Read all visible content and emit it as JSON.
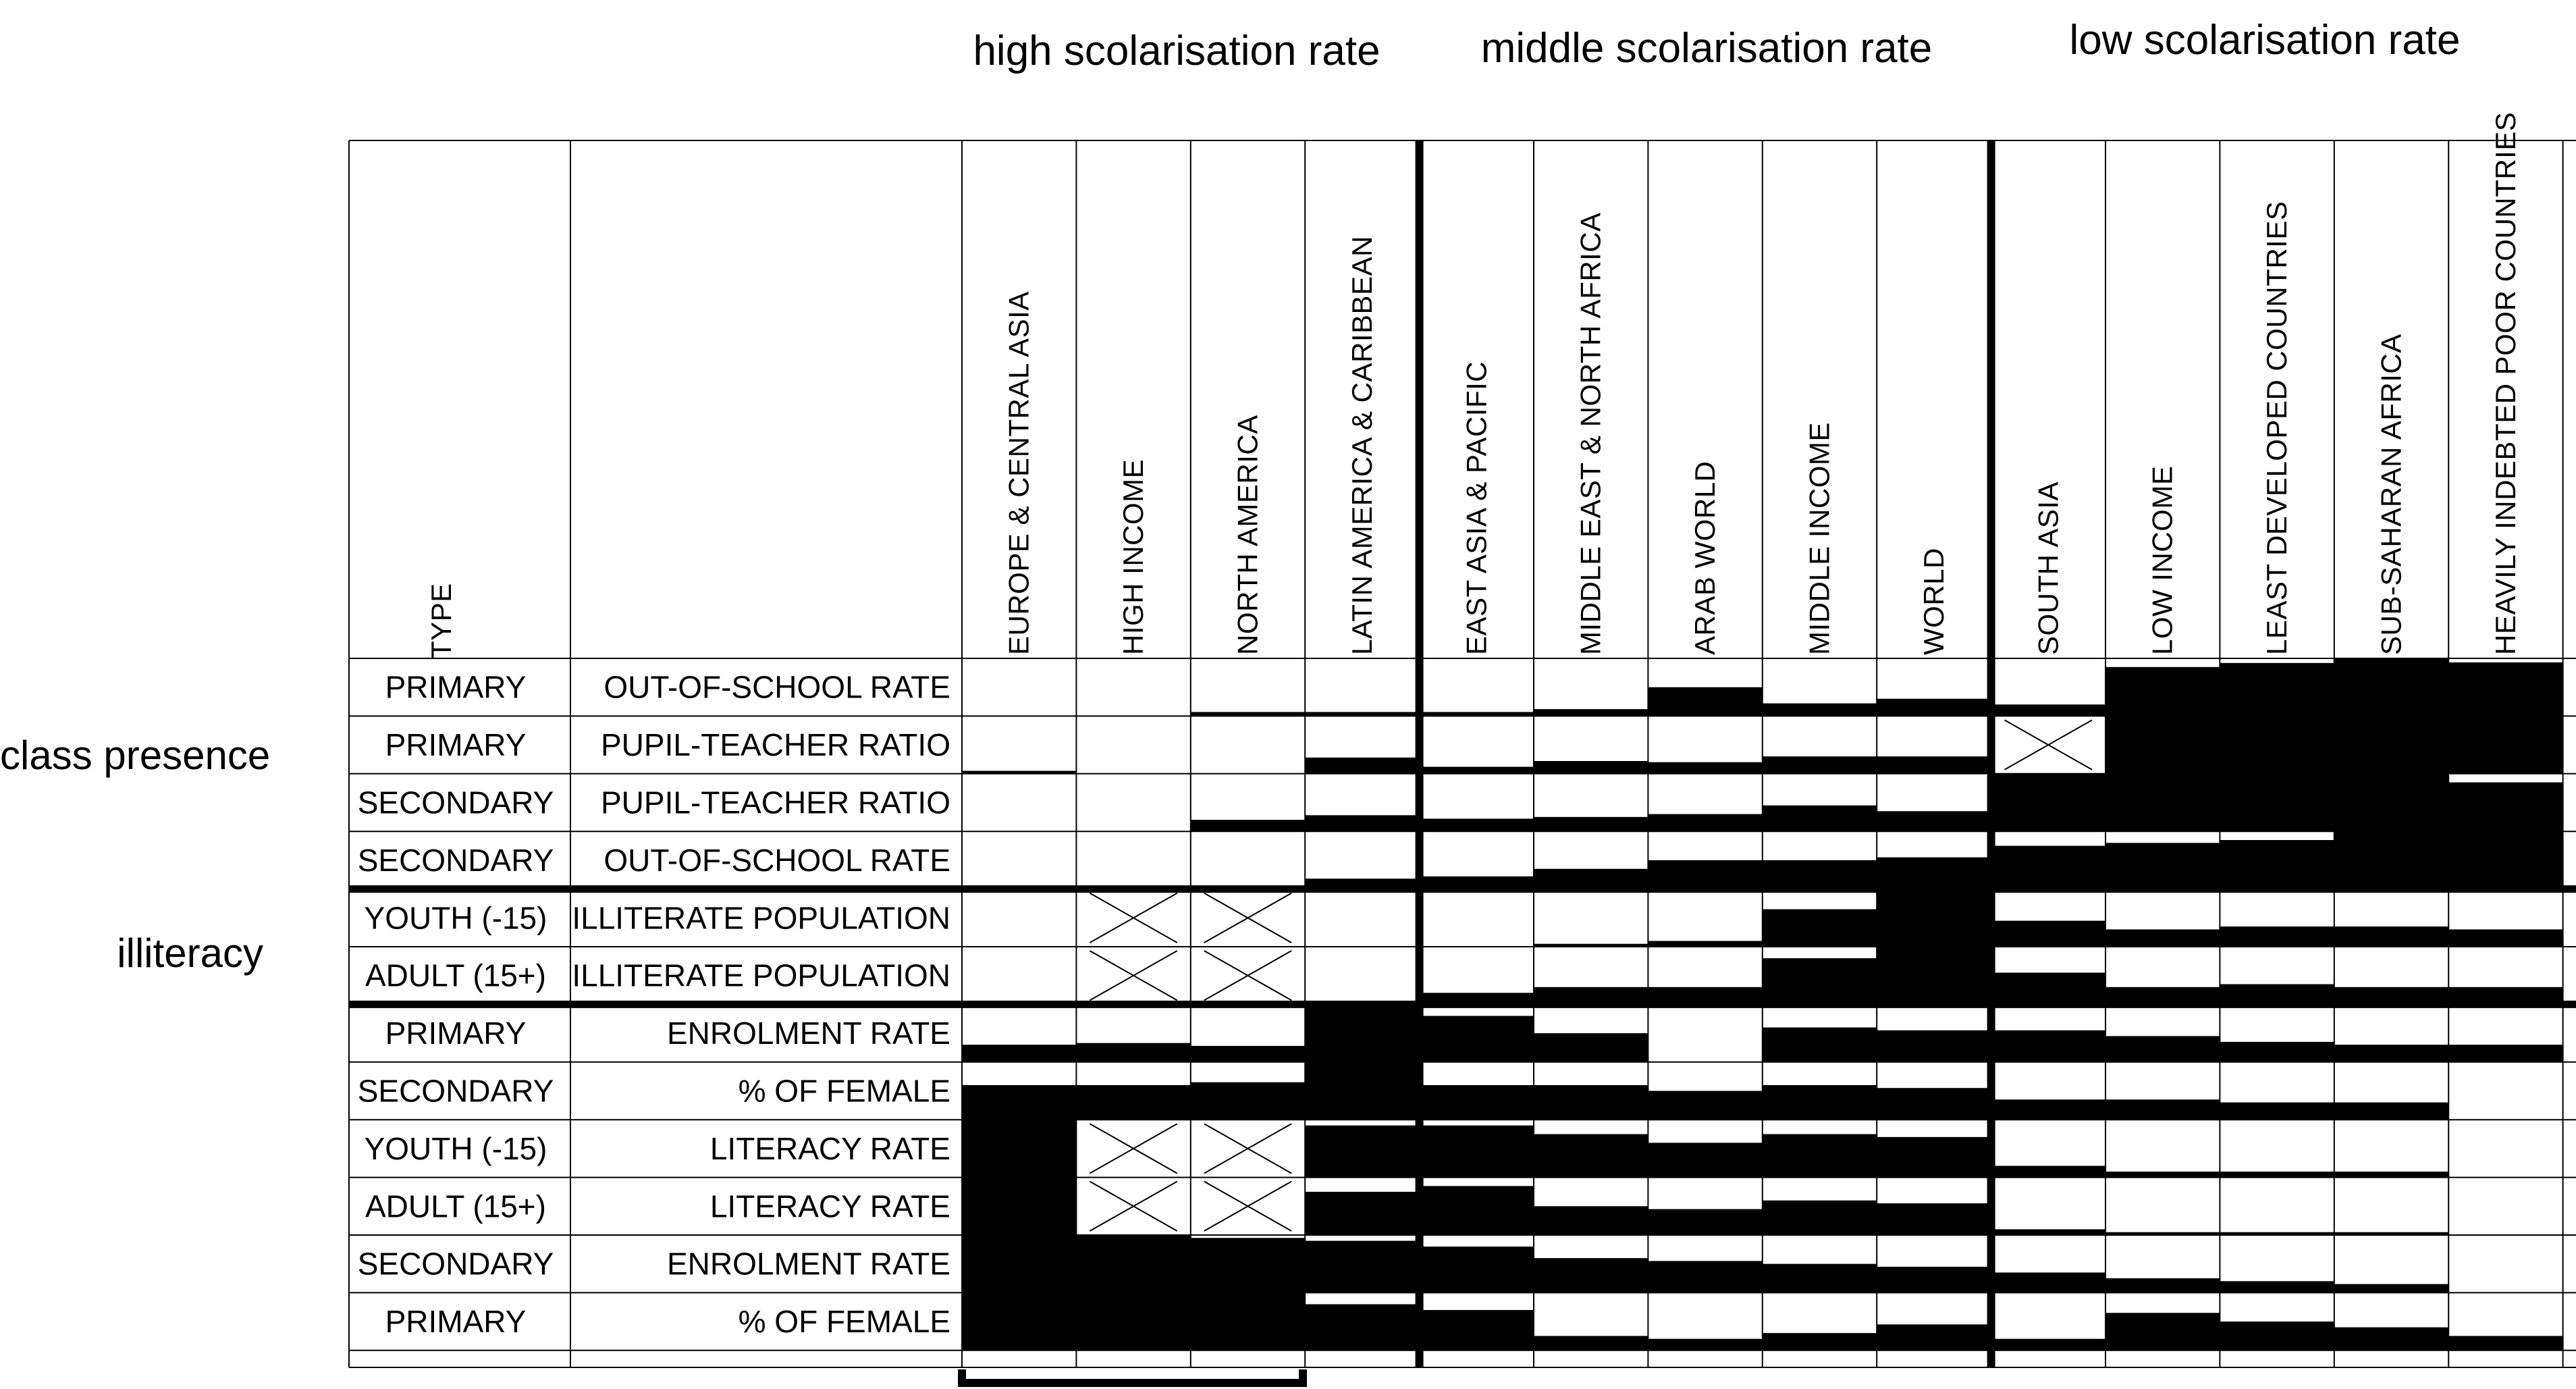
{
  "groups": [
    {
      "label": "high scolarisation rate"
    },
    {
      "label": "middle scolarisation rate"
    },
    {
      "label": "low scolarisation rate"
    }
  ],
  "side_labels": [
    {
      "label": "class presence"
    },
    {
      "label": "illiteracy"
    }
  ],
  "type_header": "TYPE",
  "columns": [
    "EUROPE & CENTRAL ASIA",
    "HIGH INCOME",
    "NORTH AMERICA",
    "LATIN AMERICA & CARIBBEAN",
    "EAST ASIA & PACIFIC",
    "MIDDLE EAST & NORTH AFRICA",
    "ARAB WORLD",
    "MIDDLE INCOME",
    "WORLD",
    "SOUTH ASIA",
    "LOW INCOME",
    "LEAST DEVELOPED COUNTRIES",
    "SUB-SAHARAN AFRICA",
    "HEAVILY INDEBTED POOR COUNTRIES"
  ],
  "rows": [
    {
      "type": "PRIMARY",
      "indicator": "OUT-OF-SCHOOL RATE"
    },
    {
      "type": "PRIMARY",
      "indicator": "PUPIL-TEACHER RATIO"
    },
    {
      "type": "SECONDARY",
      "indicator": "PUPIL-TEACHER RATIO"
    },
    {
      "type": "SECONDARY",
      "indicator": "OUT-OF-SCHOOL RATE"
    },
    {
      "type": "YOUTH (-15)",
      "indicator": "ILLITERATE POPULATION"
    },
    {
      "type": "ADULT (15+)",
      "indicator": "ILLITERATE POPULATION"
    },
    {
      "type": "PRIMARY",
      "indicator": "ENROLMENT RATE"
    },
    {
      "type": "SECONDARY",
      "indicator": "% OF FEMALE"
    },
    {
      "type": "YOUTH (-15)",
      "indicator": "LITERACY RATE"
    },
    {
      "type": "ADULT (15+)",
      "indicator": "LITERACY RATE"
    },
    {
      "type": "SECONDARY",
      "indicator": "ENROLMENT RATE"
    },
    {
      "type": "PRIMARY",
      "indicator": "% OF FEMALE"
    }
  ],
  "fill_fractions": [
    [
      0,
      0,
      0.07,
      0.07,
      0.07,
      0.12,
      0.5,
      0.22,
      0.3,
      0.2,
      0.85,
      0.92,
      1,
      0.93
    ],
    [
      0.05,
      0,
      0,
      0.28,
      0.12,
      0.22,
      0.2,
      0.3,
      0.3,
      null,
      1,
      1,
      1,
      1
    ],
    [
      0,
      0,
      0.2,
      0.28,
      0.22,
      0.25,
      0.3,
      0.45,
      0.35,
      1,
      1,
      1,
      1,
      0.85
    ],
    [
      0,
      0.03,
      0.05,
      0.18,
      0.22,
      0.35,
      0.5,
      0.5,
      0.55,
      0.75,
      0.8,
      0.85,
      1,
      1
    ],
    [
      0,
      null,
      null,
      0,
      0,
      0.05,
      0.1,
      0.65,
      1,
      0.45,
      0.3,
      0.35,
      0.35,
      0.3
    ],
    [
      0,
      null,
      null,
      0,
      0.2,
      0.3,
      0.3,
      0.8,
      1,
      0.55,
      0.3,
      0.35,
      0.3,
      0.3
    ],
    [
      0.3,
      0.33,
      0.28,
      1,
      0.8,
      0.5,
      0,
      0.6,
      0.55,
      0.55,
      0.45,
      0.35,
      0.3,
      0.3
    ],
    [
      0.6,
      0.6,
      0.65,
      1,
      0.6,
      0.6,
      0.5,
      0.6,
      0.55,
      0.35,
      0.35,
      0.3,
      0.3,
      0
    ],
    [
      1,
      null,
      null,
      0.9,
      0.9,
      0.75,
      0.6,
      0.75,
      0.7,
      0.2,
      0.1,
      0.1,
      0.1,
      0
    ],
    [
      1,
      null,
      null,
      0.75,
      0.85,
      0.5,
      0.45,
      0.6,
      0.55,
      0.1,
      0.05,
      0.05,
      0.05,
      0
    ],
    [
      1,
      1,
      0.95,
      0.9,
      0.8,
      0.6,
      0.55,
      0.5,
      0.45,
      0.35,
      0.25,
      0.2,
      0.15,
      0
    ],
    [
      1,
      1,
      1,
      0.8,
      0.7,
      0.25,
      0.2,
      0.3,
      0.45,
      0.2,
      0.65,
      0.5,
      0.4,
      0.25
    ]
  ],
  "colors": {
    "fill": "#000000",
    "line": "#000000",
    "background": "#ffffff"
  }
}
